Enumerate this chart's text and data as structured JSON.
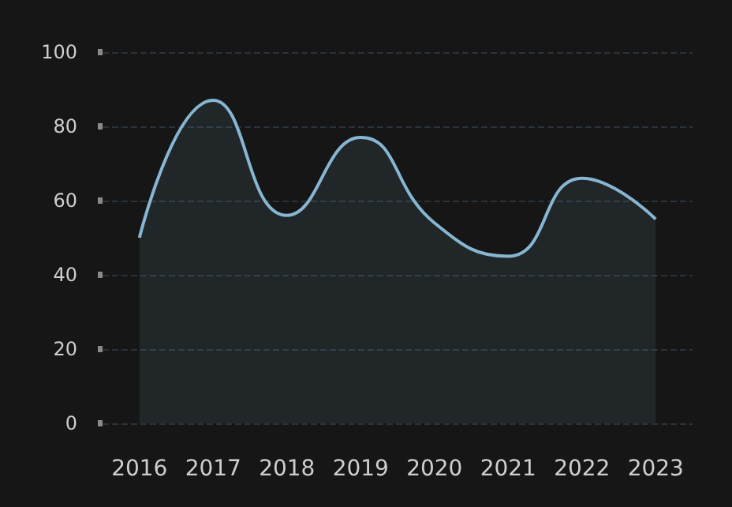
{
  "chart_data": {
    "type": "area",
    "categories": [
      "2016",
      "2017",
      "2018",
      "2019",
      "2020",
      "2021",
      "2022",
      "2023"
    ],
    "series": [
      {
        "color": "#86b6d1",
        "values": [
          50,
          87,
          56,
          77,
          54,
          45,
          66,
          55
        ]
      }
    ],
    "ylim": [
      0,
      100
    ],
    "yticks": [
      0,
      20,
      40,
      60,
      80,
      100
    ],
    "grid": "y",
    "line_style": "solid",
    "marker": "none"
  }
}
